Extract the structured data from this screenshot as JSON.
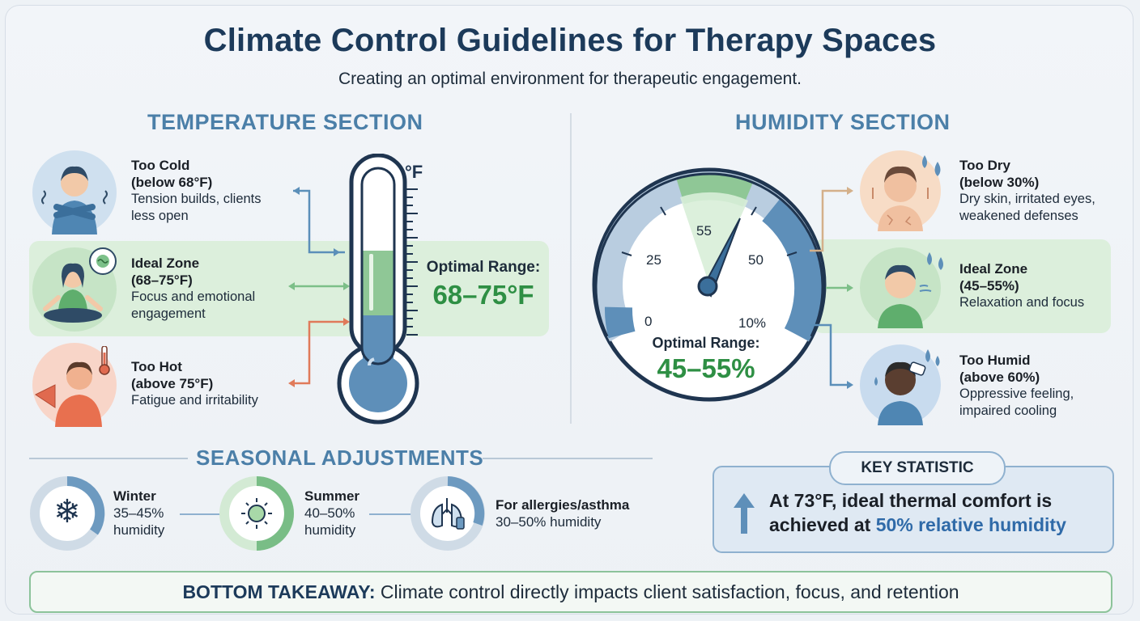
{
  "header": {
    "title": "Climate Control Guidelines for Therapy Spaces",
    "subtitle": "Creating an optimal environment for therapeutic engagement."
  },
  "temperature": {
    "heading": "TEMPERATURE SECTION",
    "unit": "°F",
    "items": [
      {
        "title1": "Too Cold",
        "title2": "(below 68°F)",
        "text1": "Tension builds, clients",
        "text2": "less open"
      },
      {
        "title1": "Ideal Zone",
        "title2": "(68–75°F)",
        "text1": "Focus and emotional",
        "text2": "engagement"
      },
      {
        "title1": "Too Hot",
        "title2": "(above 75°F)",
        "text1": "Fatigue and irritability",
        "text2": ""
      }
    ],
    "optimal_label": "Optimal Range:",
    "optimal_value": "68–75°F"
  },
  "humidity": {
    "heading": "HUMIDITY SECTION",
    "gauge_labels": [
      "0",
      "25",
      "55",
      "50",
      "10%"
    ],
    "optimal_label": "Optimal Range:",
    "optimal_value": "45–55%",
    "items": [
      {
        "title1": "Too Dry",
        "title2": "(below 30%)",
        "text1": "Dry skin, irritated eyes,",
        "text2": "weakened defenses"
      },
      {
        "title1": "Ideal Zone",
        "title2": "(45–55%)",
        "text1": "Relaxation and focus",
        "text2": ""
      },
      {
        "title1": "Too Humid",
        "title2": "(above 60%)",
        "text1": "Oppressive feeling,",
        "text2": "impaired cooling"
      }
    ]
  },
  "seasonal": {
    "heading": "SEASONAL ADJUSTMENTS",
    "items": [
      {
        "title": "Winter",
        "line1": "35–45%",
        "line2": "humidity",
        "icon": "snowflake-icon"
      },
      {
        "title": "Summer",
        "line1": "40–50%",
        "line2": "humidity",
        "icon": "sun-icon"
      },
      {
        "title": "For allergies/asthma",
        "line1": "30–50% humidity",
        "line2": "",
        "icon": "lungs-icon"
      }
    ]
  },
  "key_statistic": {
    "label": "KEY STATISTIC",
    "part1": "At 73°F, ideal thermal comfort is",
    "part2": "achieved at ",
    "highlight": "50% relative humidity"
  },
  "takeaway": {
    "label": "BOTTOM TAKEAWAY:",
    "text": " Climate control directly impacts client satisfaction, focus, and retention"
  },
  "colors": {
    "title": "#1c3a5a",
    "section": "#4b7fa8",
    "green": "#2e8f44",
    "cold": "#4f86b3",
    "hot": "#e06a4f",
    "highlight": "#2f6aa8"
  }
}
